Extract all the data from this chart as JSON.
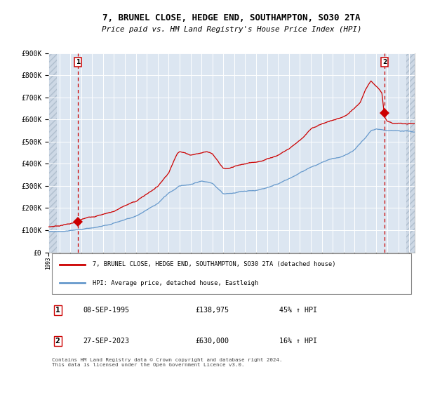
{
  "title": "7, BRUNEL CLOSE, HEDGE END, SOUTHAMPTON, SO30 2TA",
  "subtitle": "Price paid vs. HM Land Registry's House Price Index (HPI)",
  "legend_line1": "7, BRUNEL CLOSE, HEDGE END, SOUTHAMPTON, SO30 2TA (detached house)",
  "legend_line2": "HPI: Average price, detached house, Eastleigh",
  "sale1_date": "08-SEP-1995",
  "sale1_price": "£138,975",
  "sale1_hpi": "45% ↑ HPI",
  "sale2_date": "27-SEP-2023",
  "sale2_price": "£630,000",
  "sale2_hpi": "16% ↑ HPI",
  "footer": "Contains HM Land Registry data © Crown copyright and database right 2024.\nThis data is licensed under the Open Government Licence v3.0.",
  "red_color": "#cc0000",
  "blue_color": "#6699cc",
  "bg_color": "#dce6f1",
  "grid_color": "#ffffff",
  "ylim": [
    0,
    900000
  ],
  "xlim_start": 1993.0,
  "xlim_end": 2026.5,
  "sale1_x": 1995.69,
  "sale1_y": 138975,
  "sale2_x": 2023.74,
  "sale2_y": 630000,
  "hatch_left_end": 1993.75,
  "hatch_right_start": 2025.75
}
